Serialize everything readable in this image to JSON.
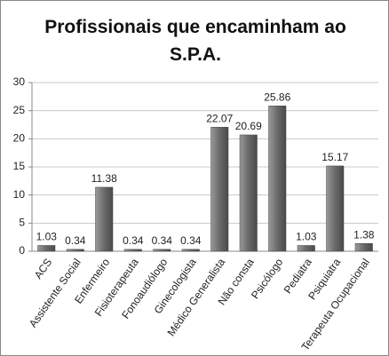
{
  "chart_data": {
    "type": "bar",
    "title": "Profissionais que encaminham ao S.P.A.",
    "categories": [
      "ACS",
      "Assistente Social",
      "Enfermeiro",
      "Fisioterapeuta",
      "Fonoaudiólogo",
      "Ginecologista",
      "Médico Generalista",
      "Não consta",
      "Psicólogo",
      "Pediatra",
      "Psiquiatra",
      "Terapeuta Ocupacional"
    ],
    "values": [
      1.03,
      0.34,
      11.38,
      0.34,
      0.34,
      0.34,
      22.07,
      20.69,
      25.86,
      1.03,
      15.17,
      1.38
    ],
    "color": "#6e6e6e",
    "ylim": [
      0,
      30
    ],
    "yticks": [
      0,
      5,
      10,
      15,
      20,
      25,
      30
    ],
    "grid": true
  }
}
